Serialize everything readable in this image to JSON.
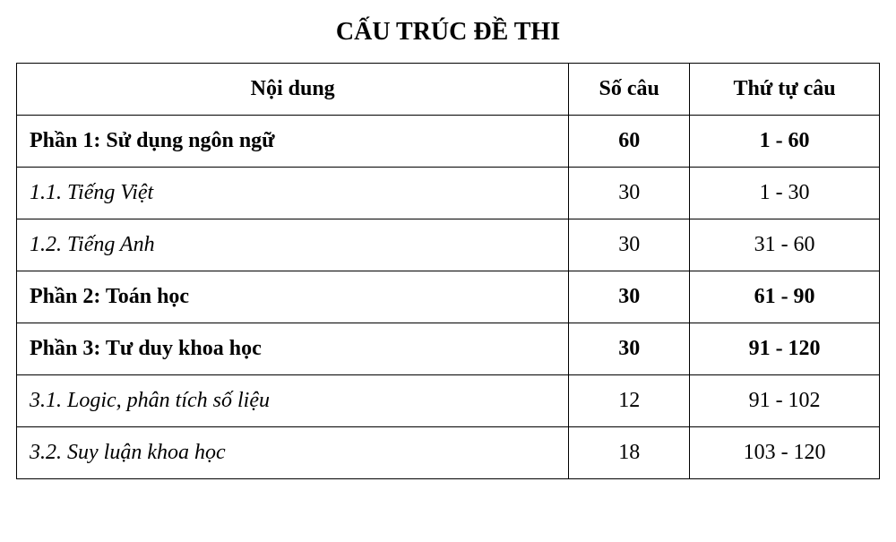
{
  "title": "CẤU TRÚC ĐỀ THI",
  "table": {
    "columns": [
      "Nội dung",
      "Số câu",
      "Thứ tự câu"
    ],
    "column_widths_pct": [
      64,
      14,
      22
    ],
    "column_align": [
      "left",
      "center",
      "center"
    ],
    "header_align": "center",
    "border_color": "#000000",
    "text_color": "#000000",
    "background_color": "#ffffff",
    "font_family": "Times New Roman",
    "header_fontsize_pt": 18,
    "cell_fontsize_pt": 18,
    "rows": [
      {
        "content": "Phần 1: Sử dụng ngôn ngữ",
        "count": "60",
        "order": "1 - 60",
        "style": "bold"
      },
      {
        "content": "1.1. Tiếng Việt",
        "count": "30",
        "order": "1 - 30",
        "style": "italic"
      },
      {
        "content": "1.2. Tiếng Anh",
        "count": "30",
        "order": "31 - 60",
        "style": "italic"
      },
      {
        "content": "Phần 2: Toán học",
        "count": "30",
        "order": "61 - 90",
        "style": "bold"
      },
      {
        "content": "Phần 3: Tư duy khoa học",
        "count": "30",
        "order": "91 - 120",
        "style": "bold"
      },
      {
        "content": "3.1. Logic, phân tích số liệu",
        "count": "12",
        "order": "91 - 102",
        "style": "italic"
      },
      {
        "content": "3.2. Suy luận khoa học",
        "count": "18",
        "order": "103 - 120",
        "style": "italic"
      }
    ]
  }
}
